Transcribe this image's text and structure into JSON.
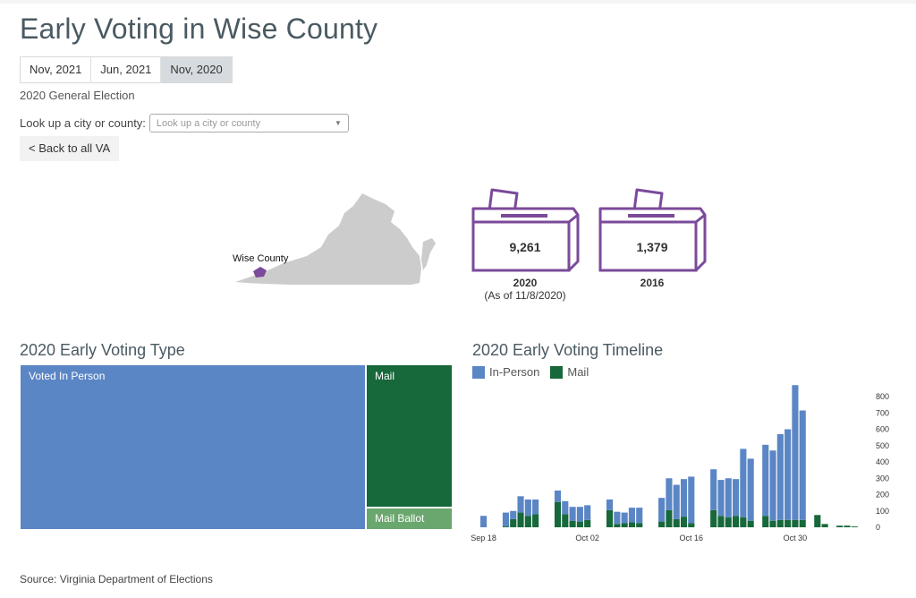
{
  "title": "Early Voting in Wise County",
  "tabs": [
    {
      "label": "Nov, 2021",
      "active": false
    },
    {
      "label": "Jun, 2021",
      "active": false
    },
    {
      "label": "Nov, 2020",
      "active": true
    }
  ],
  "election_label": "2020 General Election",
  "lookup": {
    "label": "Look up a city or county:",
    "placeholder": "Look up a city or county"
  },
  "back_button": "< Back to all VA",
  "map": {
    "highlight_label": "Wise County",
    "highlight_color": "#7b4a9a"
  },
  "boxes": [
    {
      "count": "9,261",
      "year": "2020",
      "note": "(As of 11/8/2020)"
    },
    {
      "count": "1,379",
      "year": "2016",
      "note": ""
    }
  ],
  "colors": {
    "in_person": "#5b86c5",
    "mail": "#17683a",
    "mail_ballot": "#6aa76e",
    "ballot_box": "#7b4a9a"
  },
  "treemap": {
    "title": "2020 Early Voting Type",
    "items": [
      {
        "label": "Voted In Person",
        "share": 0.8
      },
      {
        "label": "Mail",
        "share": 0.17
      },
      {
        "label": "Mail Ballot",
        "share": 0.03
      }
    ]
  },
  "chart_data": {
    "type": "bar",
    "title": "2020 Early Voting Timeline",
    "series": [
      {
        "name": "In-Person"
      },
      {
        "name": "Mail"
      }
    ],
    "ylim": [
      0,
      800
    ],
    "yticks": [
      0,
      100,
      200,
      300,
      400,
      500,
      600,
      700,
      800
    ],
    "xticks": [
      "Sep 18",
      "Oct 02",
      "Oct 16",
      "Oct 30"
    ],
    "days": [
      {
        "date": "Sep 18",
        "in_person": 70,
        "mail": 0
      },
      {
        "date": "Sep 19",
        "in_person": 0,
        "mail": 0
      },
      {
        "date": "Sep 20",
        "in_person": 0,
        "mail": 0
      },
      {
        "date": "Sep 21",
        "in_person": 85,
        "mail": 5
      },
      {
        "date": "Sep 22",
        "in_person": 50,
        "mail": 50
      },
      {
        "date": "Sep 23",
        "in_person": 100,
        "mail": 90
      },
      {
        "date": "Sep 24",
        "in_person": 100,
        "mail": 70
      },
      {
        "date": "Sep 25",
        "in_person": 90,
        "mail": 80
      },
      {
        "date": "Sep 26",
        "in_person": 0,
        "mail": 0
      },
      {
        "date": "Sep 27",
        "in_person": 0,
        "mail": 0
      },
      {
        "date": "Sep 28",
        "in_person": 70,
        "mail": 155
      },
      {
        "date": "Sep 29",
        "in_person": 80,
        "mail": 80
      },
      {
        "date": "Sep 30",
        "in_person": 85,
        "mail": 40
      },
      {
        "date": "Oct 01",
        "in_person": 90,
        "mail": 35
      },
      {
        "date": "Oct 02",
        "in_person": 90,
        "mail": 45
      },
      {
        "date": "Oct 03",
        "in_person": 0,
        "mail": 0
      },
      {
        "date": "Oct 04",
        "in_person": 0,
        "mail": 0
      },
      {
        "date": "Oct 05",
        "in_person": 65,
        "mail": 105
      },
      {
        "date": "Oct 06",
        "in_person": 75,
        "mail": 20
      },
      {
        "date": "Oct 07",
        "in_person": 65,
        "mail": 25
      },
      {
        "date": "Oct 08",
        "in_person": 90,
        "mail": 30
      },
      {
        "date": "Oct 09",
        "in_person": 95,
        "mail": 25
      },
      {
        "date": "Oct 10",
        "in_person": 0,
        "mail": 0
      },
      {
        "date": "Oct 11",
        "in_person": 0,
        "mail": 0
      },
      {
        "date": "Oct 12",
        "in_person": 145,
        "mail": 35
      },
      {
        "date": "Oct 13",
        "in_person": 195,
        "mail": 105
      },
      {
        "date": "Oct 14",
        "in_person": 210,
        "mail": 50
      },
      {
        "date": "Oct 15",
        "in_person": 230,
        "mail": 65
      },
      {
        "date": "Oct 16",
        "in_person": 285,
        "mail": 25
      },
      {
        "date": "Oct 17",
        "in_person": 0,
        "mail": 0
      },
      {
        "date": "Oct 18",
        "in_person": 0,
        "mail": 0
      },
      {
        "date": "Oct 19",
        "in_person": 250,
        "mail": 105
      },
      {
        "date": "Oct 20",
        "in_person": 220,
        "mail": 70
      },
      {
        "date": "Oct 21",
        "in_person": 240,
        "mail": 60
      },
      {
        "date": "Oct 22",
        "in_person": 225,
        "mail": 70
      },
      {
        "date": "Oct 23",
        "in_person": 420,
        "mail": 60
      },
      {
        "date": "Oct 24",
        "in_person": 380,
        "mail": 40
      },
      {
        "date": "Oct 25",
        "in_person": 0,
        "mail": 0
      },
      {
        "date": "Oct 26",
        "in_person": 435,
        "mail": 70
      },
      {
        "date": "Oct 27",
        "in_person": 430,
        "mail": 40
      },
      {
        "date": "Oct 28",
        "in_person": 525,
        "mail": 45
      },
      {
        "date": "Oct 29",
        "in_person": 555,
        "mail": 45
      },
      {
        "date": "Oct 30",
        "in_person": 825,
        "mail": 45
      },
      {
        "date": "Oct 31",
        "in_person": 670,
        "mail": 45
      },
      {
        "date": "Nov 01",
        "in_person": 0,
        "mail": 0
      },
      {
        "date": "Nov 02",
        "in_person": 0,
        "mail": 75
      },
      {
        "date": "Nov 03",
        "in_person": 0,
        "mail": 20
      },
      {
        "date": "Nov 04",
        "in_person": 0,
        "mail": 0
      },
      {
        "date": "Nov 05",
        "in_person": 0,
        "mail": 10
      },
      {
        "date": "Nov 06",
        "in_person": 0,
        "mail": 10
      },
      {
        "date": "Nov 07",
        "in_person": 0,
        "mail": 5
      }
    ]
  },
  "source": "Source: Virginia Department of Elections"
}
